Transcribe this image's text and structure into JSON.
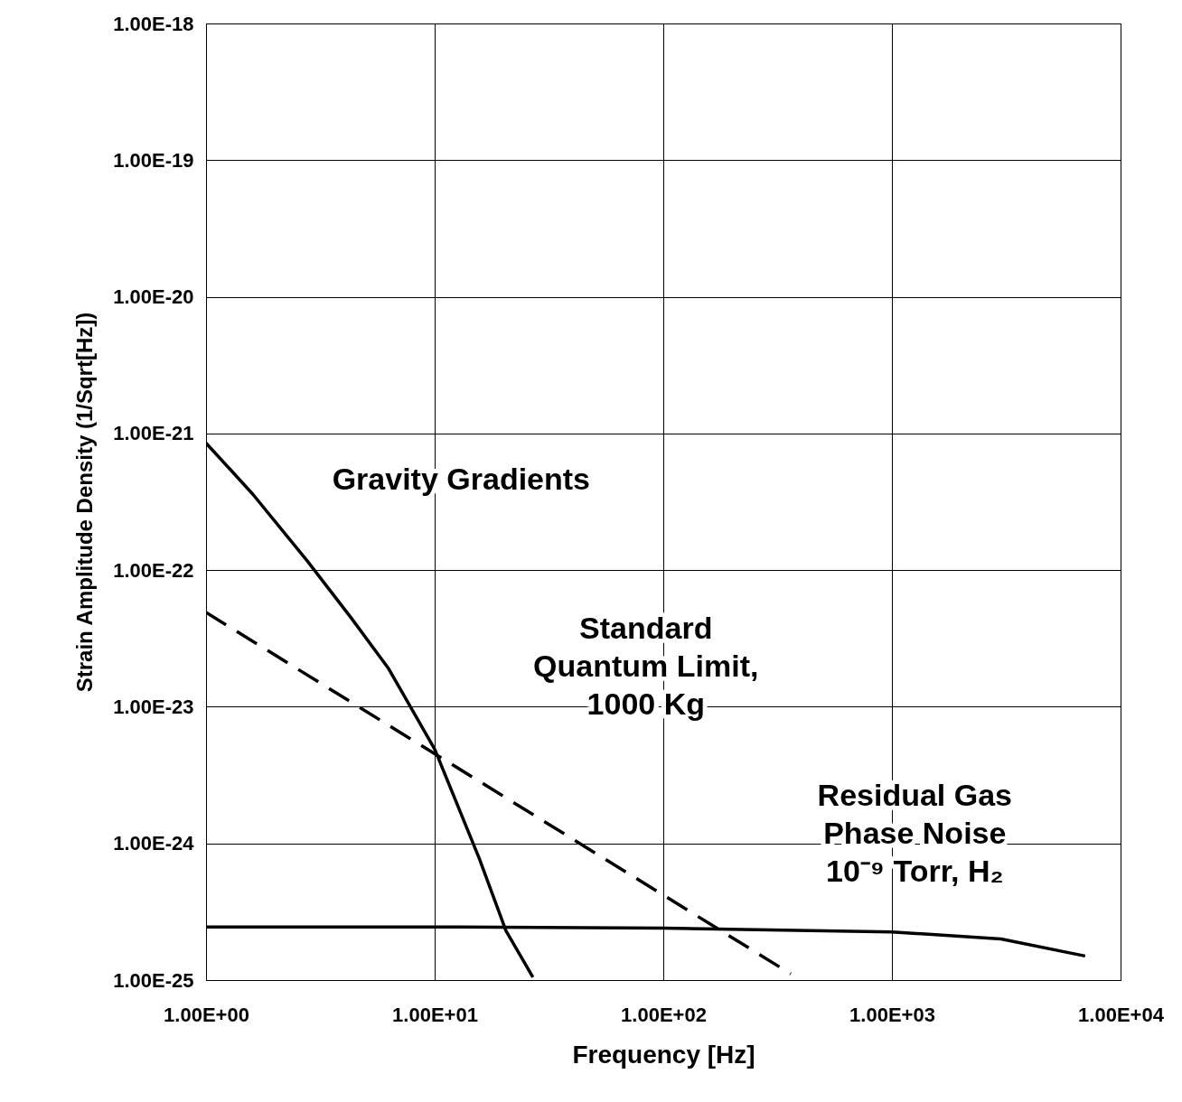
{
  "chart_data": {
    "type": "line",
    "xlabel": "Frequency  [Hz]",
    "ylabel": "Strain Amplitude Density (1/Sqrt[Hz])",
    "log": "xy",
    "grid": true,
    "marker": "none",
    "xlim": [
      1,
      10000
    ],
    "ylim": [
      1e-25,
      1e-18
    ],
    "xticks": [
      {
        "value": 1,
        "label": "1.00E+00"
      },
      {
        "value": 10,
        "label": "1.00E+01"
      },
      {
        "value": 100,
        "label": "1.00E+02"
      },
      {
        "value": 1000,
        "label": "1.00E+03"
      },
      {
        "value": 10000,
        "label": "1.00E+04"
      }
    ],
    "yticks": [
      {
        "value": 1e-25,
        "label": "1.00E-25"
      },
      {
        "value": 1e-24,
        "label": "1.00E-24"
      },
      {
        "value": 1e-23,
        "label": "1.00E-23"
      },
      {
        "value": 1e-22,
        "label": "1.00E-22"
      },
      {
        "value": 1e-21,
        "label": "1.00E-21"
      },
      {
        "value": 1e-20,
        "label": "1.00E-20"
      },
      {
        "value": 1e-19,
        "label": "1.00E-19"
      },
      {
        "value": 1e-18,
        "label": "1.00E-18"
      }
    ],
    "series": [
      {
        "name": "Gravity Gradients",
        "color": "#000000",
        "line_style": "solid",
        "x": [
          1,
          1.6,
          2.77,
          4.3,
          6.29,
          10,
          15.6,
          20.5,
          26.9
        ],
        "values": [
          8.5e-22,
          3.6e-22,
          1.17e-22,
          4.5e-23,
          1.9e-23,
          4.9e-24,
          7.9e-25,
          2.3e-25,
          1.05e-25
        ]
      },
      {
        "name": "Standard Quantum Limit, 1000 Kg",
        "color": "#000000",
        "line_style": "dashed",
        "x": [
          1,
          361
        ],
        "values": [
          4.9e-23,
          1.11e-25
        ]
      },
      {
        "name": "Residual Gas Phase Noise 10⁻⁹ Torr, H₂",
        "color": "#000000",
        "line_style": "solid",
        "x": [
          1,
          10,
          100,
          1000,
          3000,
          7000
        ],
        "values": [
          2.45e-25,
          2.45e-25,
          2.4e-25,
          2.25e-25,
          2e-25,
          1.5e-25
        ]
      }
    ]
  }
}
